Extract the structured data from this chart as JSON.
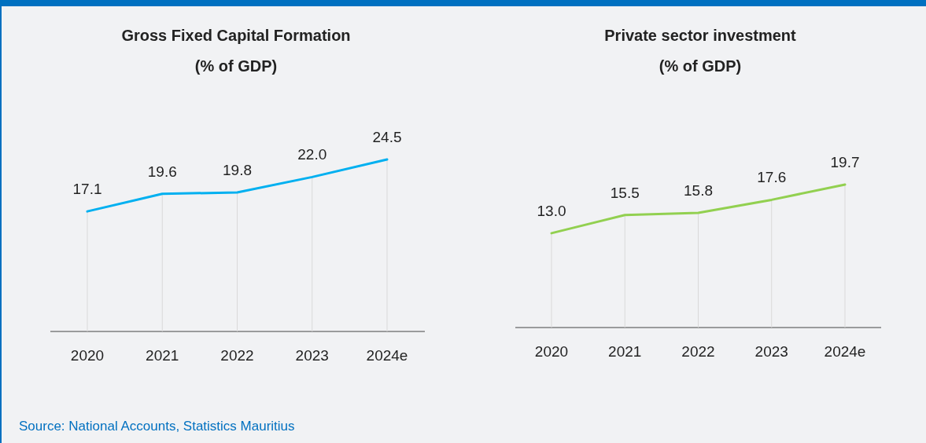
{
  "chart_data": [
    {
      "type": "line",
      "title": "Gross Fixed Capital Formation",
      "subtitle": "(% of GDP)",
      "categories": [
        "2020",
        "2021",
        "2022",
        "2023",
        "2024e"
      ],
      "series": [
        {
          "color": "#00b0f0",
          "values": [
            17.1,
            19.6,
            19.8,
            22.0,
            24.5
          ],
          "value_labels": [
            "17.1",
            "19.6",
            "19.8",
            "22.0",
            "24.5"
          ]
        }
      ],
      "grid": "x",
      "marker": "none",
      "annotations": [
        "Source: National Accounts, Statistics Mauritius"
      ]
    },
    {
      "type": "line",
      "title": "Private sector investment",
      "subtitle": "(% of GDP)",
      "categories": [
        "2020",
        "2021",
        "2022",
        "2023",
        "2024e"
      ],
      "series": [
        {
          "color": "#92d050",
          "values": [
            13.0,
            15.5,
            15.8,
            17.6,
            19.7
          ],
          "value_labels": [
            "13.0",
            "15.5",
            "15.8",
            "17.6",
            "19.7"
          ]
        }
      ],
      "grid": "x",
      "marker": "none"
    }
  ]
}
